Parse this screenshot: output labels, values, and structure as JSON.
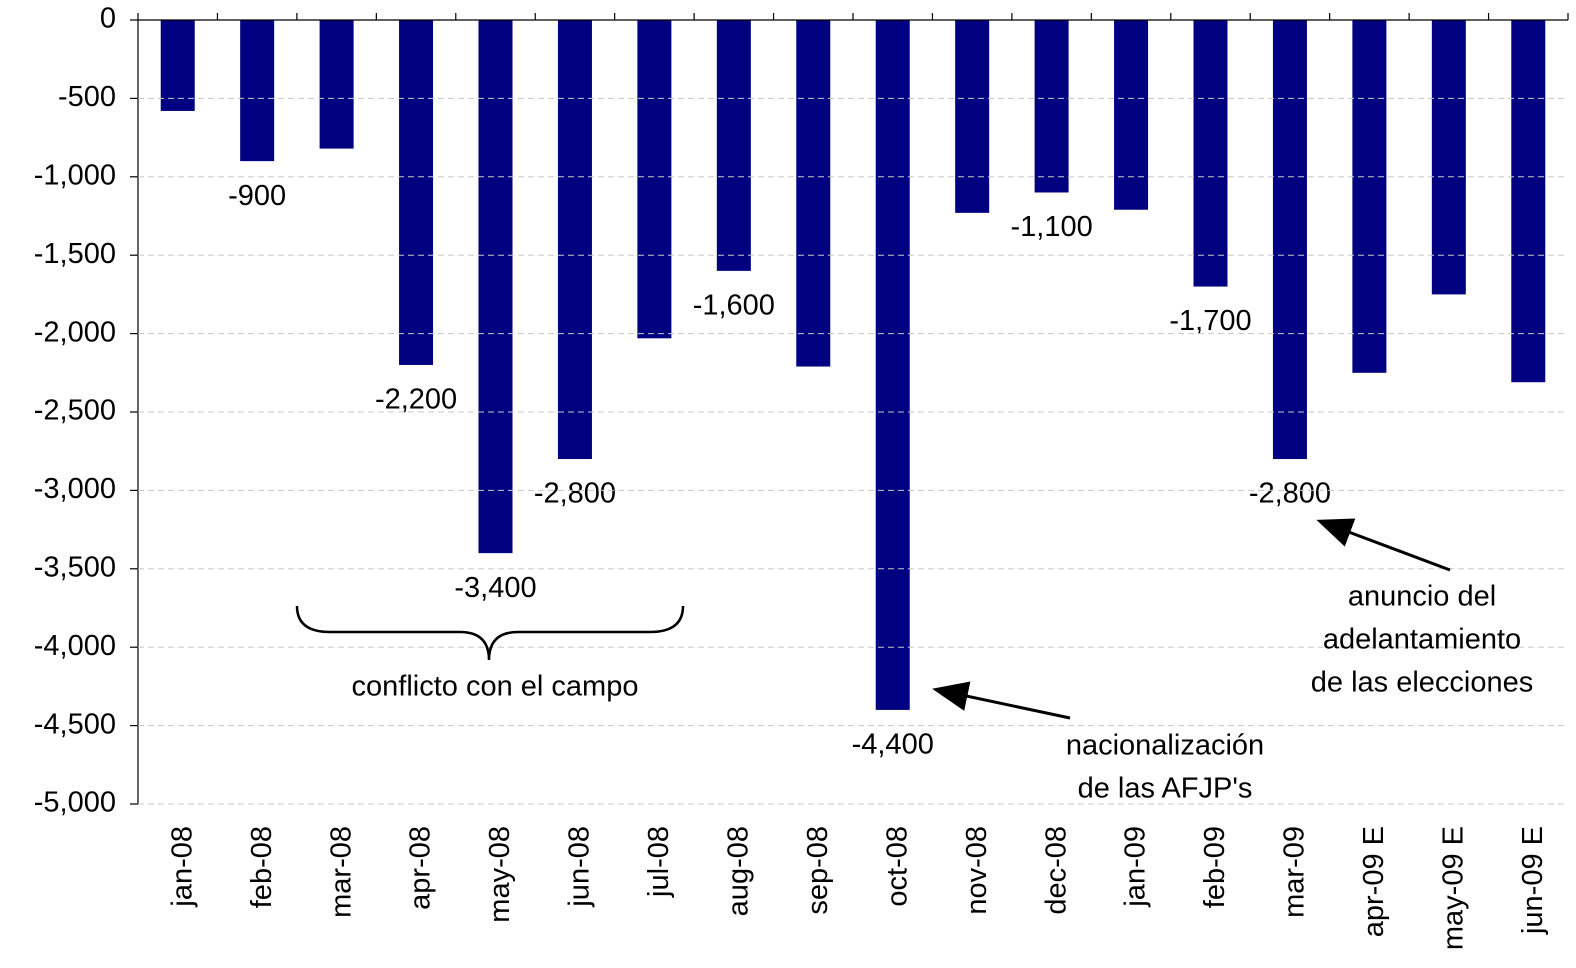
{
  "chart_data": {
    "type": "bar",
    "categories": [
      "jan-08",
      "feb-08",
      "mar-08",
      "apr-08",
      "may-08",
      "jun-08",
      "jul-08",
      "aug-08",
      "sep-08",
      "oct-08",
      "nov-08",
      "dec-08",
      "jan-09",
      "feb-09",
      "mar-09",
      "apr-09 E",
      "may-09 E",
      "jun-09 E"
    ],
    "values": [
      -580,
      -900,
      -820,
      -2200,
      -3400,
      -2800,
      -2030,
      -1600,
      -2210,
      -4400,
      -1230,
      -1100,
      -1210,
      -1700,
      -2800,
      -2250,
      -1750,
      -2310
    ],
    "value_labels": [
      null,
      "-900",
      null,
      "-2,200",
      "-3,400",
      "-2,800",
      null,
      "-1,600",
      null,
      "-4,400",
      null,
      "-1,100",
      null,
      "-1,700",
      "-2,800",
      null,
      null,
      null
    ],
    "color": "#000080",
    "ylim": [
      -5000,
      0
    ],
    "yticks": [
      0,
      -500,
      {
        "value": -1000,
        "label": "-1,000"
      },
      {
        "value": -1500,
        "label": "-1,500"
      },
      {
        "value": -2000,
        "label": "-2,000"
      },
      {
        "value": -2500,
        "label": "-2,500"
      },
      {
        "value": -3000,
        "label": "-3,000"
      },
      {
        "value": -3500,
        "label": "-3,500"
      },
      {
        "value": -4000,
        "label": "-4,000"
      },
      {
        "value": -4500,
        "label": "-4,500"
      },
      {
        "value": -5000,
        "label": "-5,000"
      }
    ],
    "grid": true,
    "annotations": {
      "campo": "conflicto con el campo",
      "afjp": [
        "nacionalización",
        "de las AFJP's"
      ],
      "elecciones": [
        "anuncio del",
        "adelantamiento",
        "de las elecciones"
      ]
    }
  }
}
